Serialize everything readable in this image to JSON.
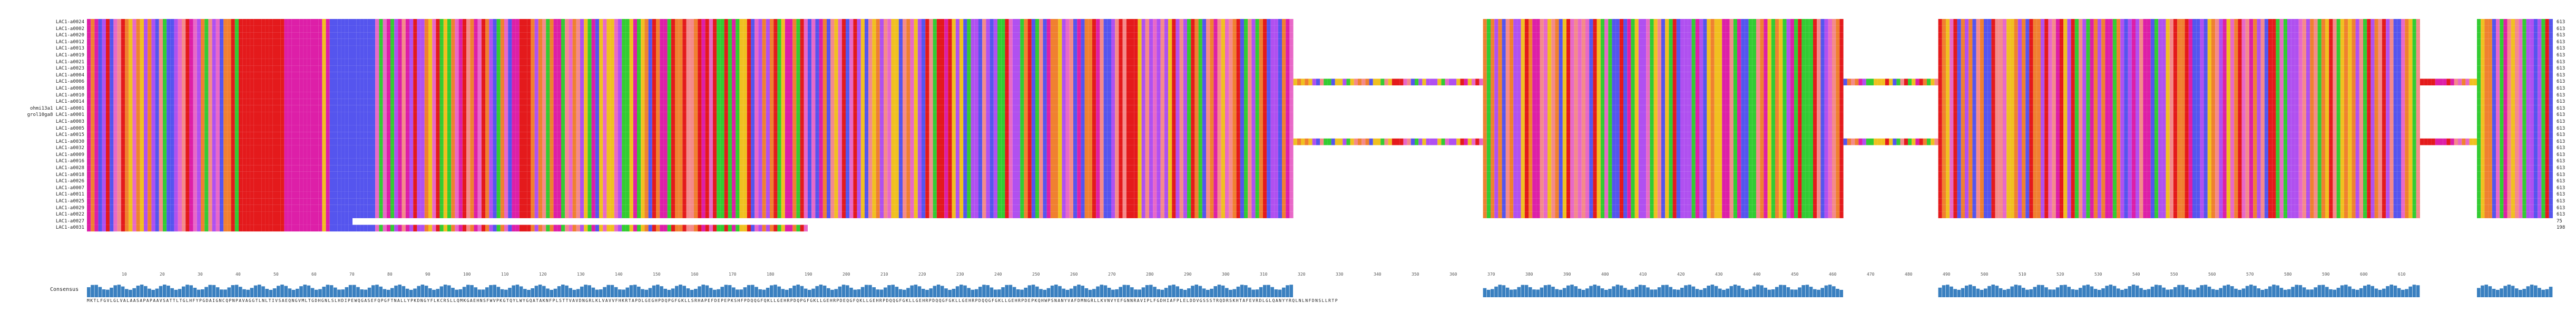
{
  "sequences": [
    {
      "name": "LAC1-a0024",
      "end": "613"
    },
    {
      "name": "LAC1-a0002",
      "end": "613"
    },
    {
      "name": "LAC1-a0020",
      "end": "613"
    },
    {
      "name": "LAC1-a0012",
      "end": "613"
    },
    {
      "name": "LAC1-a0013",
      "end": "613"
    },
    {
      "name": "LAC1-a0019",
      "end": "613"
    },
    {
      "name": "LAC1-a0021",
      "end": "613"
    },
    {
      "name": "LAC1-a0023",
      "end": "613"
    },
    {
      "name": "LAC1-a0004",
      "end": "613"
    },
    {
      "name": "LAC1-a0006",
      "end": "613"
    },
    {
      "name": "LAC1-a0008",
      "end": "613"
    },
    {
      "name": "LAC1-a0010",
      "end": "613"
    },
    {
      "name": "LAC1-a0014",
      "end": "613"
    },
    {
      "name": "ohmi13a1 LAC1-a0001",
      "end": "613"
    },
    {
      "name": "grol10ga8 LAC1-a0001",
      "end": "613"
    },
    {
      "name": "LAC1-a0003",
      "end": "613"
    },
    {
      "name": "LAC1-a0005",
      "end": "613"
    },
    {
      "name": "LAC1-a0015",
      "end": "613"
    },
    {
      "name": "LAC1-a0030",
      "end": "613"
    },
    {
      "name": "LAC1-a0032",
      "end": "613"
    },
    {
      "name": "LAC1-a0009",
      "end": "613"
    },
    {
      "name": "LAC1-a0016",
      "end": "613"
    },
    {
      "name": "LAC1-a0028",
      "end": "613"
    },
    {
      "name": "LAC1-a0018",
      "end": "613"
    },
    {
      "name": "LAC1-a0026",
      "end": "613"
    },
    {
      "name": "LAC1-a0007",
      "end": "613"
    },
    {
      "name": "LAC1-a0011",
      "end": "613"
    },
    {
      "name": "LAC1-a0025",
      "end": "613"
    },
    {
      "name": "LAC1-a0029",
      "end": "613"
    },
    {
      "name": "LAC1-a0022",
      "end": "613"
    },
    {
      "name": "LAC1-a0027",
      "end": "75"
    },
    {
      "name": "LAC1-a0031",
      "end": "198"
    }
  ],
  "ruler_ticks": [
    "10",
    "20",
    "30",
    "40",
    "50",
    "60",
    "70",
    "80",
    "90",
    "100",
    "110",
    "120",
    "130",
    "140",
    "150",
    "160",
    "170",
    "180",
    "190",
    "200",
    "210",
    "220",
    "230",
    "240",
    "250",
    "260",
    "270",
    "280",
    "290",
    "300",
    "310",
    "320",
    "330",
    "340",
    "350",
    "360",
    "370",
    "380",
    "390",
    "400",
    "410",
    "420",
    "430",
    "440",
    "450",
    "460",
    "470",
    "480",
    "490",
    "500",
    "510",
    "520",
    "530",
    "540",
    "550",
    "560",
    "570",
    "580",
    "590",
    "600",
    "610"
  ],
  "consensus_label": "Consensus",
  "consensus_sequence": "MKTLFGVLGLVALAASAPAPAAVSATTLTGLHFYPGDAIGNCQPNPAVAGGTLNLTIVSAEQNGVMLTGDHGNLSLHDIPEWQGASEFQPGFTNALLYPKDNGYFLKCRSLLQMKGAEHNSFWVPKGTQYLWYGQATAKNFPLSTTVAVDNGRLKLVAVVFHKRTAPDLGEGHPDQPGFGKLLSRHAPEFDEPEPKSHFPDQQGFQKLLGEHRPDQPGFGKLLGEHRPDEQGFQKLLGEHRPDQQGFGKLLGEHRPDQQGFGKLLGEHRPDQQGFGKLLGEHRPDEPKQHWPSNANYVAFDMNGRLLKVNVYEFGNNRAVIPLFGDHIAFPLELDDVGSSSTRQDRSKHTAFEVRDLGLQANYYRQLNLNFDNSLLRTP",
  "colors": {
    "red": "#e41a1c",
    "magenta": "#dd1fa8",
    "pink": "#e868c8",
    "salmon": "#f48a8a",
    "purple": "#b050f0",
    "blue": "#5555ee",
    "green": "#33cc33",
    "yellow": "#f0c020",
    "orange": "#f08030",
    "consensus_bar": "#3a80c0"
  }
}
